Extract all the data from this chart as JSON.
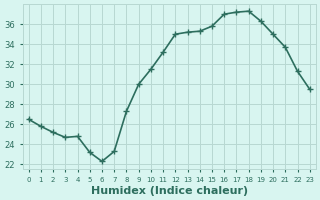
{
  "x": [
    0,
    1,
    2,
    3,
    4,
    5,
    6,
    7,
    8,
    9,
    10,
    11,
    12,
    13,
    14,
    15,
    16,
    17,
    18,
    19,
    20,
    21,
    22,
    23
  ],
  "y": [
    26.5,
    25.8,
    25.2,
    24.7,
    24.8,
    23.2,
    22.3,
    23.3,
    27.3,
    30.0,
    31.5,
    33.2,
    35.0,
    35.2,
    35.3,
    35.8,
    37.0,
    37.2,
    37.3,
    36.3,
    35.0,
    33.7,
    31.3,
    29.5
  ],
  "line_color": "#2d6e5e",
  "marker": "+",
  "marker_size": 4,
  "linewidth": 1.2,
  "bg_color": "#d8f5f0",
  "grid_color": "#b8d8d2",
  "tick_color": "#2d6e5e",
  "label_color": "#2d6e5e",
  "xlabel": "Humidex (Indice chaleur)",
  "xlabel_fontsize": 8,
  "ylabel_ticks": [
    22,
    24,
    26,
    28,
    30,
    32,
    34,
    36
  ],
  "ylim": [
    21.5,
    38
  ],
  "xlim": [
    -0.5,
    23.5
  ],
  "xtick_labels": [
    "0",
    "1",
    "2",
    "3",
    "4",
    "5",
    "6",
    "7",
    "8",
    "9",
    "10",
    "11",
    "12",
    "13",
    "14",
    "15",
    "16",
    "17",
    "18",
    "19",
    "20",
    "21",
    "22",
    "23"
  ]
}
